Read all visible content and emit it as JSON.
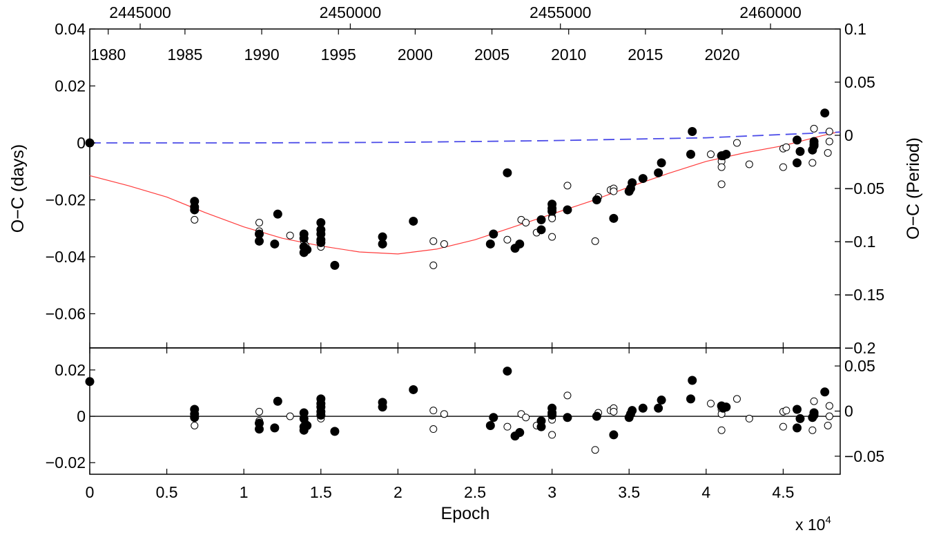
{
  "chart_data": [
    {
      "type": "scatter",
      "panel": "top",
      "xlabel": "",
      "ylabel": "O−C (days)",
      "ylabel_right": "O−C (Period)",
      "xlim": [
        0,
        48700
      ],
      "ylim": [
        -0.072,
        0.04
      ],
      "ylim_right": [
        -0.2,
        0.1
      ],
      "x_ticks": [
        "0",
        "0.5",
        "1",
        "1.5",
        "2",
        "2.5",
        "3",
        "3.5",
        "4",
        "4.5"
      ],
      "y_ticks": [
        "0.04",
        "0.02",
        "0",
        "−0.02",
        "−0.04",
        "−0.06"
      ],
      "y_ticks_right": [
        "0.1",
        "0.05",
        "0",
        "−0.05",
        "−0.1",
        "−0.15",
        "−0.2"
      ],
      "top_year_ticks": [
        "1980",
        "1985",
        "1990",
        "1995",
        "2000",
        "2005",
        "2010",
        "2015",
        "2020"
      ],
      "top_jd_ticks": [
        "2445000",
        "2450000",
        "2455000",
        "2460000"
      ],
      "grid": false,
      "colors": {
        "fit": "#ff3b3b",
        "linear": "#4a4ae8",
        "points": "#000000"
      },
      "lines": [
        {
          "style": "solid",
          "color": "#ff3b3b",
          "points": [
            [
              0,
              -0.0115
            ],
            [
              2500,
              -0.015
            ],
            [
              5000,
              -0.019
            ],
            [
              7500,
              -0.0245
            ],
            [
              10000,
              -0.0295
            ],
            [
              12500,
              -0.0335
            ],
            [
              15000,
              -0.0362
            ],
            [
              17500,
              -0.0383
            ],
            [
              20000,
              -0.039
            ],
            [
              22500,
              -0.0373
            ],
            [
              25000,
              -0.034
            ],
            [
              27500,
              -0.0295
            ],
            [
              30000,
              -0.025
            ],
            [
              32500,
              -0.0205
            ],
            [
              35000,
              -0.0155
            ],
            [
              37500,
              -0.0108
            ],
            [
              40000,
              -0.0065
            ],
            [
              42500,
              -0.0035
            ],
            [
              45000,
              -0.001
            ],
            [
              47500,
              0.0025
            ],
            [
              48700,
              0.004
            ]
          ]
        },
        {
          "style": "dashed",
          "color": "#4a4ae8",
          "points": [
            [
              0,
              0
            ],
            [
              10000,
              0
            ],
            [
              20000,
              0.0002
            ],
            [
              30000,
              0.0008
            ],
            [
              40000,
              0.0018
            ],
            [
              48700,
              0.0038
            ]
          ]
        }
      ],
      "filled": [
        [
          0,
          0
        ],
        [
          6800,
          -0.0205
        ],
        [
          6800,
          -0.0225
        ],
        [
          6800,
          -0.0235
        ],
        [
          11000,
          -0.032
        ],
        [
          11000,
          -0.0345
        ],
        [
          12000,
          -0.0355
        ],
        [
          12200,
          -0.025
        ],
        [
          13900,
          -0.032
        ],
        [
          13900,
          -0.0335
        ],
        [
          13900,
          -0.0365
        ],
        [
          13900,
          -0.0385
        ],
        [
          14100,
          -0.0375
        ],
        [
          15000,
          -0.028
        ],
        [
          15000,
          -0.0305
        ],
        [
          15000,
          -0.032
        ],
        [
          15000,
          -0.034
        ],
        [
          15000,
          -0.035
        ],
        [
          15900,
          -0.043
        ],
        [
          19000,
          -0.033
        ],
        [
          19000,
          -0.0355
        ],
        [
          21000,
          -0.0275
        ],
        [
          26000,
          -0.0355
        ],
        [
          26200,
          -0.032
        ],
        [
          27100,
          -0.0105
        ],
        [
          27600,
          -0.037
        ],
        [
          27900,
          -0.0355
        ],
        [
          29300,
          -0.027
        ],
        [
          29300,
          -0.0305
        ],
        [
          30000,
          -0.0215
        ],
        [
          30000,
          -0.023
        ],
        [
          30000,
          -0.024
        ],
        [
          31000,
          -0.0235
        ],
        [
          32900,
          -0.02
        ],
        [
          34000,
          -0.0265
        ],
        [
          35000,
          -0.017
        ],
        [
          35100,
          -0.016
        ],
        [
          35200,
          -0.014
        ],
        [
          35900,
          -0.0125
        ],
        [
          36900,
          -0.0105
        ],
        [
          37100,
          -0.007
        ],
        [
          39000,
          -0.004
        ],
        [
          39100,
          0.004
        ],
        [
          41000,
          -0.0045
        ],
        [
          41100,
          -0.0045
        ],
        [
          41300,
          -0.004
        ],
        [
          45900,
          0.001
        ],
        [
          45900,
          -0.007
        ],
        [
          46100,
          -0.003
        ],
        [
          46900,
          -0.0025
        ],
        [
          47000,
          -0.0005
        ],
        [
          47000,
          0.0005
        ],
        [
          47000,
          -0.001
        ],
        [
          47700,
          0.0105
        ]
      ],
      "open": [
        [
          6800,
          -0.027
        ],
        [
          11000,
          -0.028
        ],
        [
          11000,
          -0.031
        ],
        [
          13000,
          -0.0325
        ],
        [
          13900,
          -0.0345
        ],
        [
          14000,
          -0.036
        ],
        [
          15000,
          -0.0315
        ],
        [
          15000,
          -0.0365
        ],
        [
          22300,
          -0.0345
        ],
        [
          22300,
          -0.043
        ],
        [
          23000,
          -0.0355
        ],
        [
          27100,
          -0.034
        ],
        [
          28000,
          -0.027
        ],
        [
          28300,
          -0.028
        ],
        [
          29000,
          -0.0315
        ],
        [
          30000,
          -0.026
        ],
        [
          30000,
          -0.033
        ],
        [
          30000,
          -0.0265
        ],
        [
          31000,
          -0.015
        ],
        [
          32800,
          -0.0345
        ],
        [
          33000,
          -0.019
        ],
        [
          33800,
          -0.0165
        ],
        [
          34000,
          -0.016
        ],
        [
          34000,
          -0.017
        ],
        [
          40300,
          -0.004
        ],
        [
          41000,
          -0.0065
        ],
        [
          41000,
          -0.0085
        ],
        [
          41000,
          -0.0145
        ],
        [
          42000,
          0
        ],
        [
          42800,
          -0.0075
        ],
        [
          45000,
          -0.002
        ],
        [
          45000,
          -0.0085
        ],
        [
          45200,
          -0.0015
        ],
        [
          46900,
          -0.007
        ],
        [
          47000,
          0.005
        ],
        [
          47000,
          0
        ],
        [
          47900,
          -0.0035
        ],
        [
          48000,
          0.004
        ],
        [
          48000,
          0.0005
        ]
      ]
    },
    {
      "type": "scatter",
      "panel": "bottom",
      "xlabel": "Epoch",
      "x_multiplier": "x 10",
      "x_multiplier_exp": "4",
      "ylabel": "",
      "xlim": [
        0,
        48700
      ],
      "ylim": [
        -0.025,
        0.0295
      ],
      "ylim_right": [
        -0.07,
        0.07
      ],
      "x_ticks": [
        "0",
        "0.5",
        "1",
        "1.5",
        "2",
        "2.5",
        "3",
        "3.5",
        "4",
        "4.5"
      ],
      "y_ticks": [
        "0.02",
        "0",
        "−0.02"
      ],
      "y_ticks_right": [
        "0.05",
        "0",
        "−0.05"
      ],
      "grid": false,
      "filled": [
        [
          0,
          0.015
        ],
        [
          6800,
          0.003
        ],
        [
          6800,
          0.001
        ],
        [
          6800,
          -0.0005
        ],
        [
          11000,
          -0.003
        ],
        [
          11000,
          -0.0055
        ],
        [
          12000,
          -0.005
        ],
        [
          12200,
          0.0065
        ],
        [
          13900,
          0.0015
        ],
        [
          13900,
          -0.001
        ],
        [
          13900,
          -0.0045
        ],
        [
          13900,
          -0.006
        ],
        [
          14100,
          -0.004
        ],
        [
          15000,
          0.0075
        ],
        [
          15000,
          0.0055
        ],
        [
          15000,
          0.004
        ],
        [
          15000,
          0.002
        ],
        [
          15000,
          0.0005
        ],
        [
          15900,
          -0.0065
        ],
        [
          19000,
          0.006
        ],
        [
          19000,
          0.004
        ],
        [
          21000,
          0.0115
        ],
        [
          26000,
          -0.004
        ],
        [
          26200,
          -0.0005
        ],
        [
          27100,
          0.0195
        ],
        [
          27600,
          -0.0085
        ],
        [
          27900,
          -0.007
        ],
        [
          29300,
          -0.002
        ],
        [
          29300,
          -0.0045
        ],
        [
          30000,
          0.0035
        ],
        [
          30000,
          0.0015
        ],
        [
          30000,
          0.0005
        ],
        [
          31000,
          -0.0005
        ],
        [
          32900,
          0
        ],
        [
          34000,
          -0.008
        ],
        [
          35000,
          -0.0005
        ],
        [
          35100,
          0.001
        ],
        [
          35200,
          0.0025
        ],
        [
          35900,
          0.0035
        ],
        [
          36900,
          0.0035
        ],
        [
          37100,
          0.007
        ],
        [
          39000,
          0.0075
        ],
        [
          39100,
          0.0155
        ],
        [
          41000,
          0.0045
        ],
        [
          41100,
          0.0035
        ],
        [
          41300,
          0.004
        ],
        [
          45900,
          0.003
        ],
        [
          45900,
          -0.005
        ],
        [
          46100,
          -0.001
        ],
        [
          46900,
          -0.0005
        ],
        [
          47000,
          0.0015
        ],
        [
          47000,
          0.0005
        ],
        [
          47000,
          0.0015
        ],
        [
          47700,
          0.0105
        ]
      ],
      "open": [
        [
          6800,
          -0.004
        ],
        [
          11000,
          0.002
        ],
        [
          11000,
          -0.002
        ],
        [
          13000,
          0
        ],
        [
          13900,
          -0.0015
        ],
        [
          14000,
          -0.003
        ],
        [
          15000,
          0.0035
        ],
        [
          15000,
          -0.001
        ],
        [
          22300,
          0.0025
        ],
        [
          22300,
          -0.0055
        ],
        [
          23000,
          0.001
        ],
        [
          27100,
          -0.0045
        ],
        [
          28000,
          0.001
        ],
        [
          28300,
          -0.0005
        ],
        [
          29000,
          -0.004
        ],
        [
          30000,
          0.003
        ],
        [
          30000,
          -0.0015
        ],
        [
          30000,
          -0.008
        ],
        [
          31000,
          0.009
        ],
        [
          32800,
          -0.0145
        ],
        [
          33000,
          0.0015
        ],
        [
          33800,
          0.0025
        ],
        [
          34000,
          0.0035
        ],
        [
          34000,
          0.002
        ],
        [
          40300,
          0.0055
        ],
        [
          41000,
          0.003
        ],
        [
          41000,
          0.001
        ],
        [
          41000,
          -0.006
        ],
        [
          42000,
          0.0075
        ],
        [
          42800,
          -0.001
        ],
        [
          45000,
          0.002
        ],
        [
          45000,
          -0.0045
        ],
        [
          45200,
          0.0025
        ],
        [
          46900,
          -0.006
        ],
        [
          47000,
          0.0065
        ],
        [
          47000,
          0.0015
        ],
        [
          47900,
          -0.004
        ],
        [
          48000,
          0.0045
        ],
        [
          48000,
          0
        ]
      ]
    }
  ]
}
